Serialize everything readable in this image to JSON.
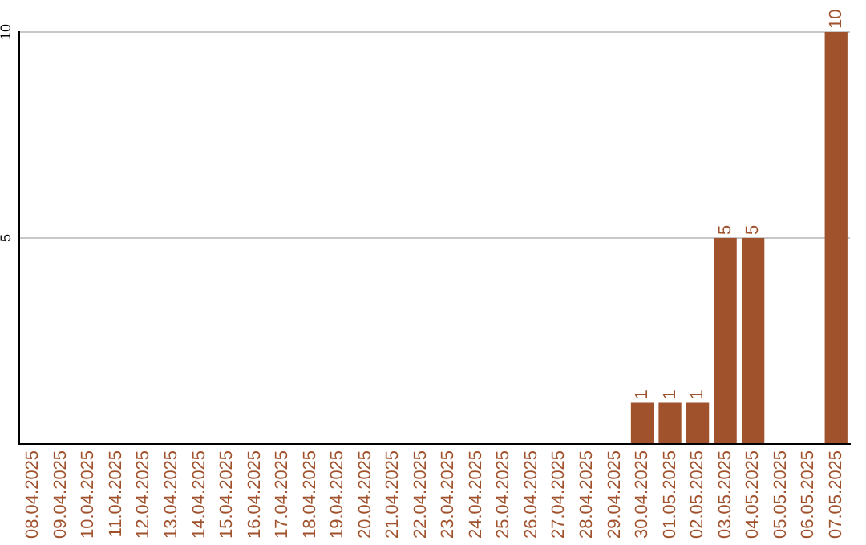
{
  "chart_data": {
    "type": "bar",
    "categories": [
      "08.04.2025",
      "09.04.2025",
      "10.04.2025",
      "11.04.2025",
      "12.04.2025",
      "13.04.2025",
      "14.04.2025",
      "15.04.2025",
      "16.04.2025",
      "17.04.2025",
      "18.04.2025",
      "19.04.2025",
      "20.04.2025",
      "21.04.2025",
      "22.04.2025",
      "23.04.2025",
      "24.04.2025",
      "25.04.2025",
      "26.04.2025",
      "27.04.2025",
      "28.04.2025",
      "29.04.2025",
      "30.04.2025",
      "01.05.2025",
      "02.05.2025",
      "03.05.2025",
      "04.05.2025",
      "05.05.2025",
      "06.05.2025",
      "07.05.2025"
    ],
    "values": [
      0,
      0,
      0,
      0,
      0,
      0,
      0,
      0,
      0,
      0,
      0,
      0,
      0,
      0,
      0,
      0,
      0,
      0,
      0,
      0,
      0,
      0,
      1,
      1,
      1,
      5,
      5,
      0,
      0,
      10
    ],
    "value_labels": [
      null,
      null,
      null,
      null,
      null,
      null,
      null,
      null,
      null,
      null,
      null,
      null,
      null,
      null,
      null,
      null,
      null,
      null,
      null,
      null,
      null,
      null,
      "1",
      "1",
      "1",
      "5",
      "5",
      null,
      null,
      "10"
    ],
    "color": "#a0522d",
    "ylim": [
      0,
      10
    ],
    "yticks": [
      {
        "value": 0,
        "label": null
      },
      5,
      10
    ],
    "grid": "y",
    "legend": false
  }
}
